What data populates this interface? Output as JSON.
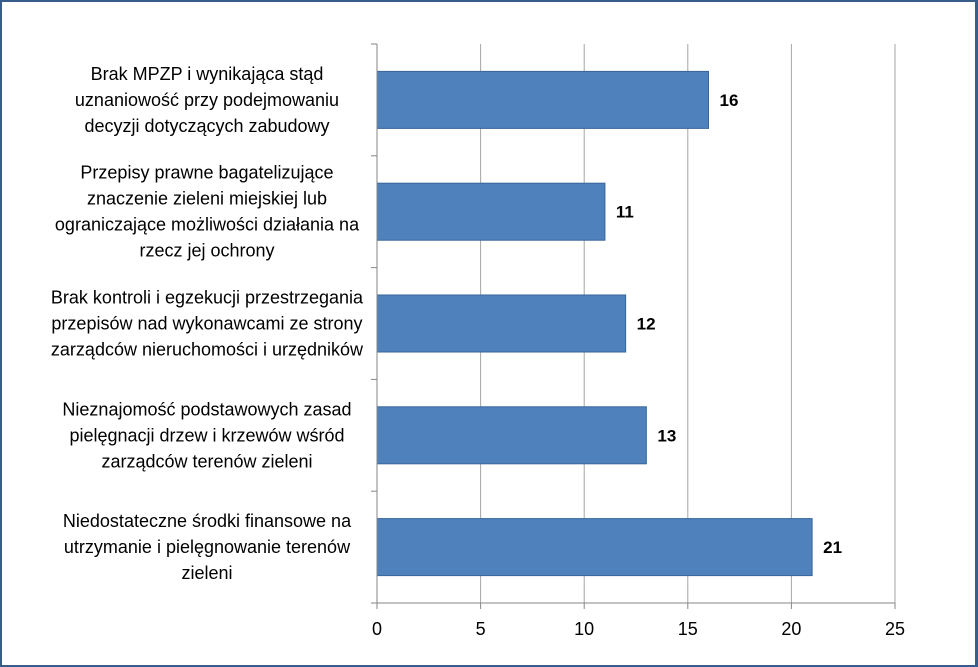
{
  "chart_data": {
    "type": "bar",
    "orientation": "horizontal",
    "title": "",
    "xlabel": "",
    "ylabel": "",
    "xlim": [
      0,
      25
    ],
    "x_ticks": [
      0,
      5,
      10,
      15,
      20,
      25
    ],
    "grid": "vertical",
    "legend": "none",
    "categories": [
      {
        "lines": [
          "Brak MPZP i wynikająca stąd",
          "uznaniowość przy podejmowaniu",
          "decyzji dotyczących zabudowy"
        ]
      },
      {
        "lines": [
          "Przepisy prawne bagatelizujące",
          "znaczenie zieleni miejskiej lub",
          "ograniczające możliwości działania na",
          "rzecz jej ochrony"
        ]
      },
      {
        "lines": [
          "Brak kontroli i egzekucji przestrzegania",
          "przepisów nad wykonawcami ze strony",
          "zarządców nieruchomości i urzędników"
        ]
      },
      {
        "lines": [
          "Nieznajomość podstawowych zasad",
          "pielęgnacji drzew i krzewów wśród",
          "zarządców terenów zieleni"
        ]
      },
      {
        "lines": [
          "Niedostateczne środki finansowe na",
          "utrzymanie i pielęgnowanie terenów",
          "zieleni"
        ]
      }
    ],
    "values": [
      16,
      11,
      12,
      13,
      21
    ],
    "data_labels": [
      "16",
      "11",
      "12",
      "13",
      "21"
    ],
    "colors": {
      "bar": "#4f81bd",
      "bar_border": "#3a6699",
      "grid": "#a6a6a6",
      "axis": "#868686",
      "frame": "#385d8a"
    }
  }
}
